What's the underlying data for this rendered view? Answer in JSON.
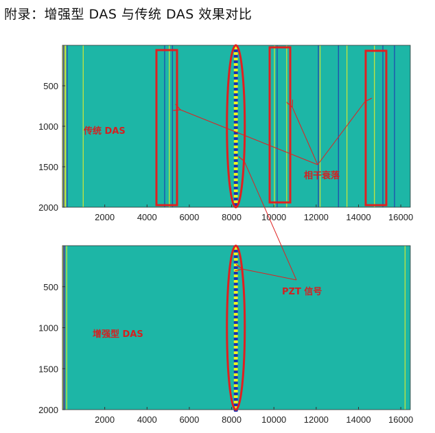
{
  "title": "附录：增强型 DAS 与传统 DAS 效果对比",
  "colors": {
    "background": "#1db6a6",
    "yellow": "#f0f020",
    "blue": "#2030b0",
    "annotation": "#e02020"
  },
  "chart_data": [
    {
      "type": "heatmap",
      "label": "传统 DAS",
      "xlim": [
        0,
        16450
      ],
      "ylim": [
        0,
        2000
      ],
      "y_reversed": true,
      "xticks": [
        "2000",
        "4000",
        "6000",
        "8000",
        "10000",
        "12000",
        "14000",
        "16000"
      ],
      "yticks": [
        "500",
        "1000",
        "1500",
        "2000"
      ],
      "stripes": [
        {
          "x": 150,
          "c": "yellow"
        },
        {
          "x": 220,
          "c": "blue"
        },
        {
          "x": 980,
          "c": "yellow"
        },
        {
          "x": 4830,
          "c": "blue"
        },
        {
          "x": 5050,
          "c": "yellow"
        },
        {
          "x": 5200,
          "c": "blue"
        },
        {
          "x": 10020,
          "c": "yellow"
        },
        {
          "x": 10150,
          "c": "blue"
        },
        {
          "x": 10600,
          "c": "yellow"
        },
        {
          "x": 12100,
          "c": "blue"
        },
        {
          "x": 12180,
          "c": "yellow"
        },
        {
          "x": 13450,
          "c": "yellow"
        },
        {
          "x": 13050,
          "c": "blue"
        },
        {
          "x": 14750,
          "c": "yellow"
        },
        {
          "x": 15150,
          "c": "blue"
        },
        {
          "x": 15700,
          "c": "blue"
        }
      ],
      "pzt_x": 8200,
      "annotations": {
        "fading": "相干衰落"
      }
    },
    {
      "type": "heatmap",
      "label": "增强型 DAS",
      "xlim": [
        0,
        16450
      ],
      "ylim": [
        0,
        2000
      ],
      "y_reversed": true,
      "xticks": [
        "2000",
        "4000",
        "6000",
        "8000",
        "10000",
        "12000",
        "14000",
        "16000"
      ],
      "yticks": [
        "500",
        "1000",
        "1500",
        "2000"
      ],
      "stripes": [
        {
          "x": 100,
          "c": "blue"
        },
        {
          "x": 200,
          "c": "yellow"
        },
        {
          "x": 16200,
          "c": "yellow"
        }
      ],
      "pzt_x": 8200,
      "annotations": {
        "pzt": "PZT 信号"
      }
    }
  ]
}
